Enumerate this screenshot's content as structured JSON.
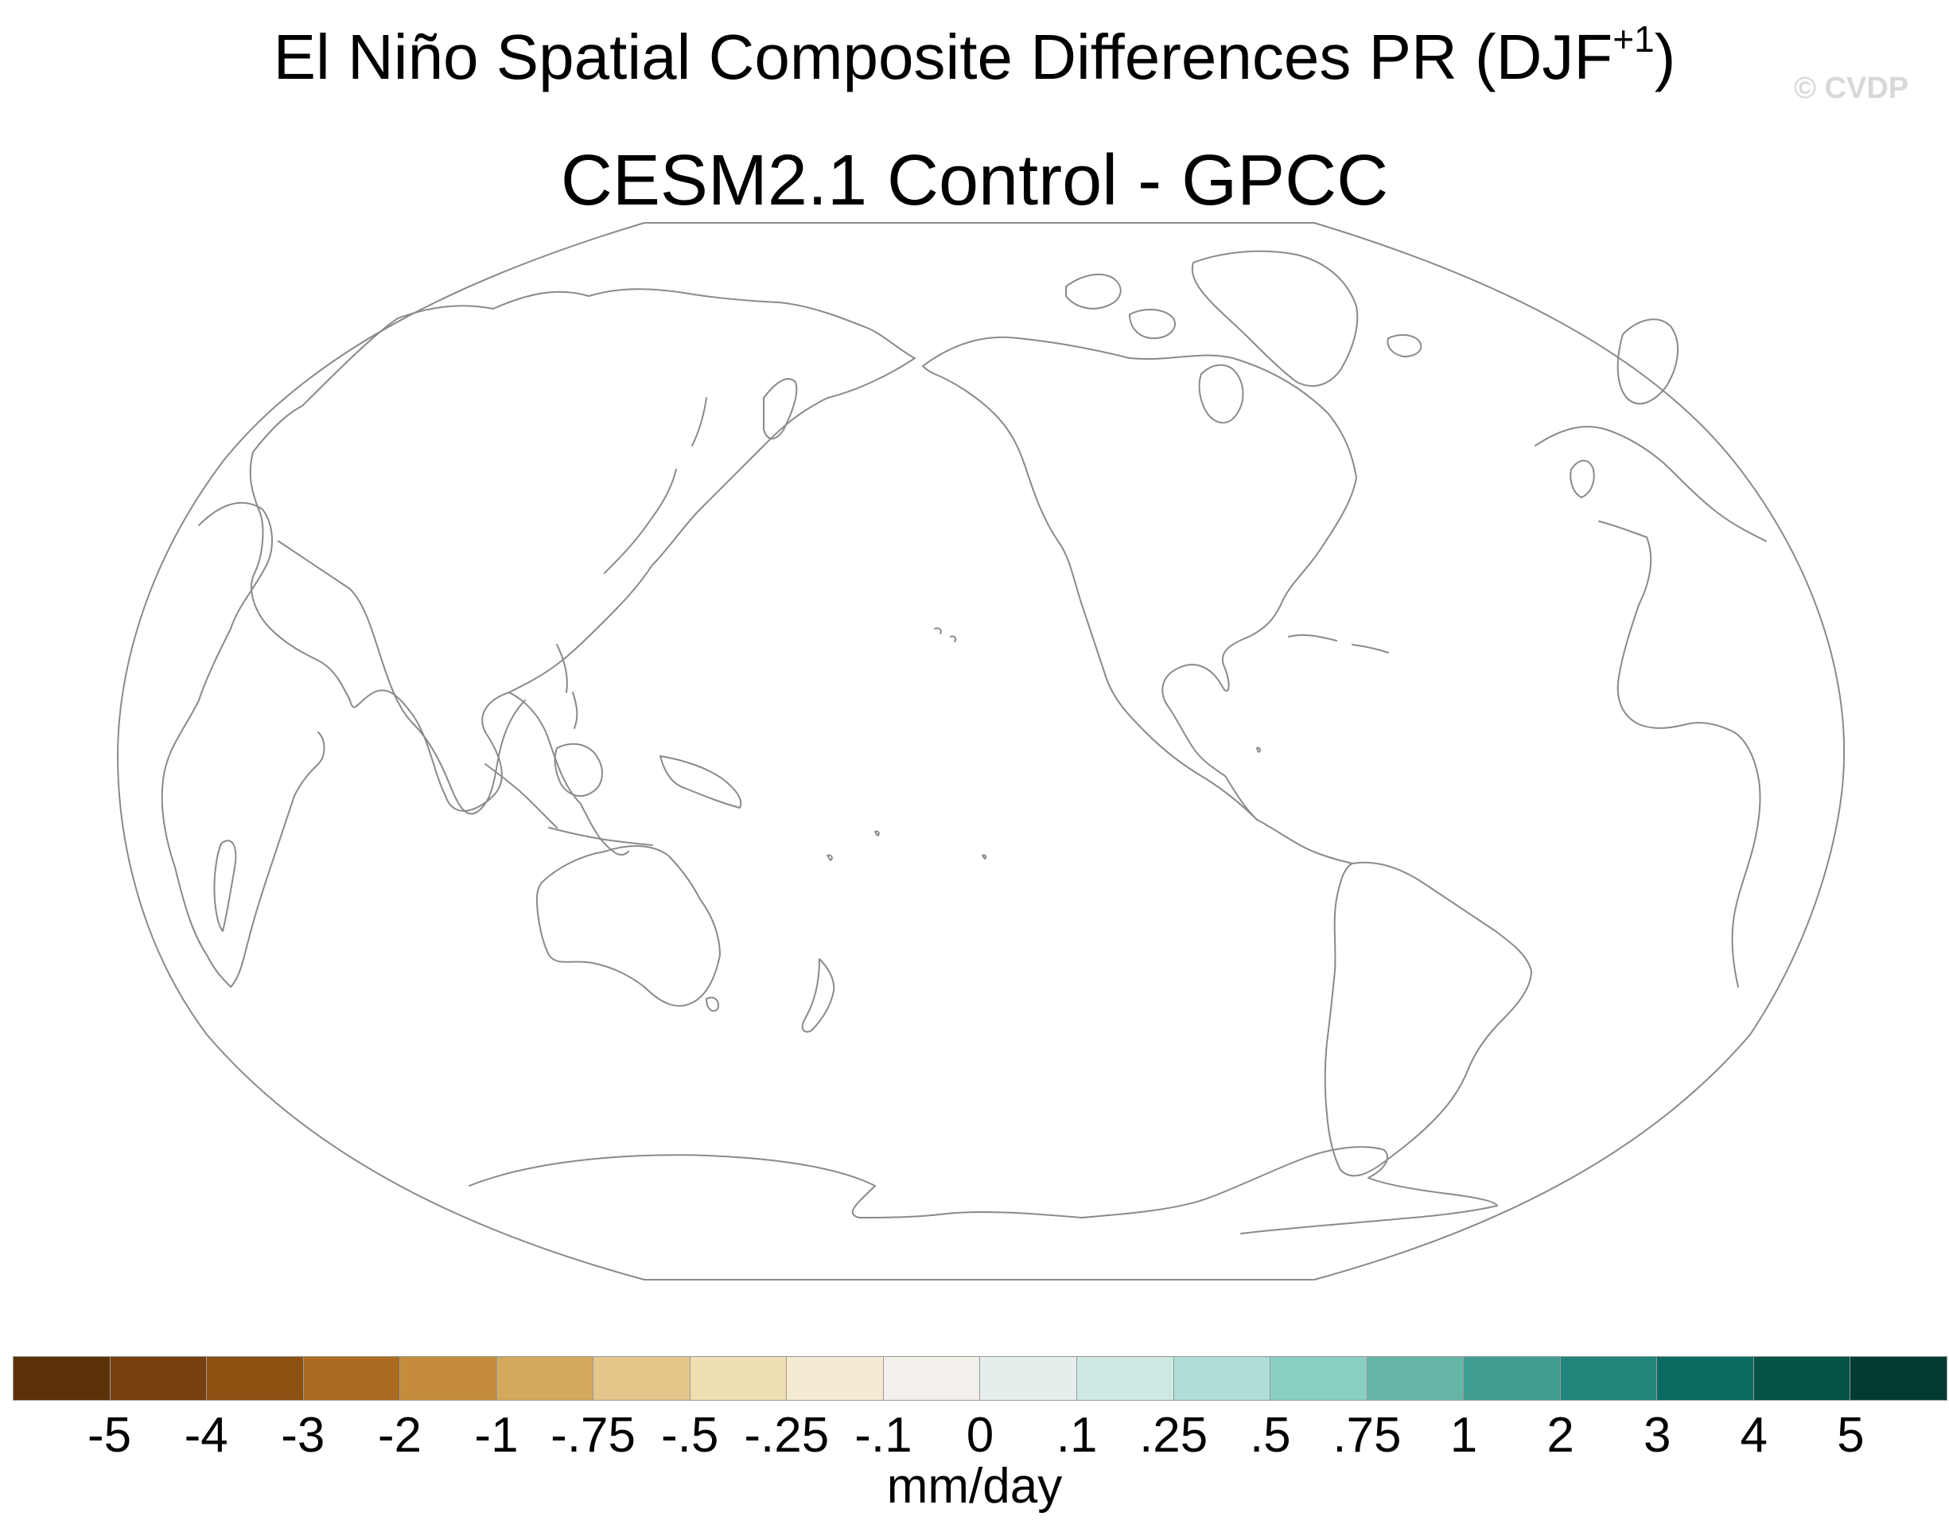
{
  "title": {
    "text": "El Niño Spatial Composite Differences PR (DJF",
    "superscript": "+1",
    "close": ")"
  },
  "subtitle": "CESM2.1 Control - GPCC",
  "copyright": "© CVDP",
  "map": {
    "projection": "Robinson",
    "central_longitude": 180,
    "features": [
      "coastlines"
    ],
    "field_shown": "none (blank)",
    "outline_color": "#8a8a8a",
    "land_fill": "#ffffff",
    "ocean_fill": "#ffffff"
  },
  "colorbar": {
    "colors": [
      "#5b3208",
      "#774010",
      "#8f5112",
      "#ab6b21",
      "#c48c3b",
      "#d4a95d",
      "#e4c68b",
      "#f0deb3",
      "#f5ebd2",
      "#f3efea",
      "#e6eeed",
      "#cde9e4",
      "#aeded7",
      "#8bcfc2",
      "#65b6a7",
      "#3f9d91",
      "#21857b",
      "#0a6b62",
      "#055247",
      "#023b30"
    ],
    "tick_labels": [
      "-5",
      "-4",
      "-3",
      "-2",
      "-1",
      "-.75",
      "-.5",
      "-.25",
      "-.1",
      "0",
      ".1",
      ".25",
      ".5",
      ".75",
      "1",
      "2",
      "3",
      "4",
      "5"
    ],
    "units": "mm/day"
  }
}
